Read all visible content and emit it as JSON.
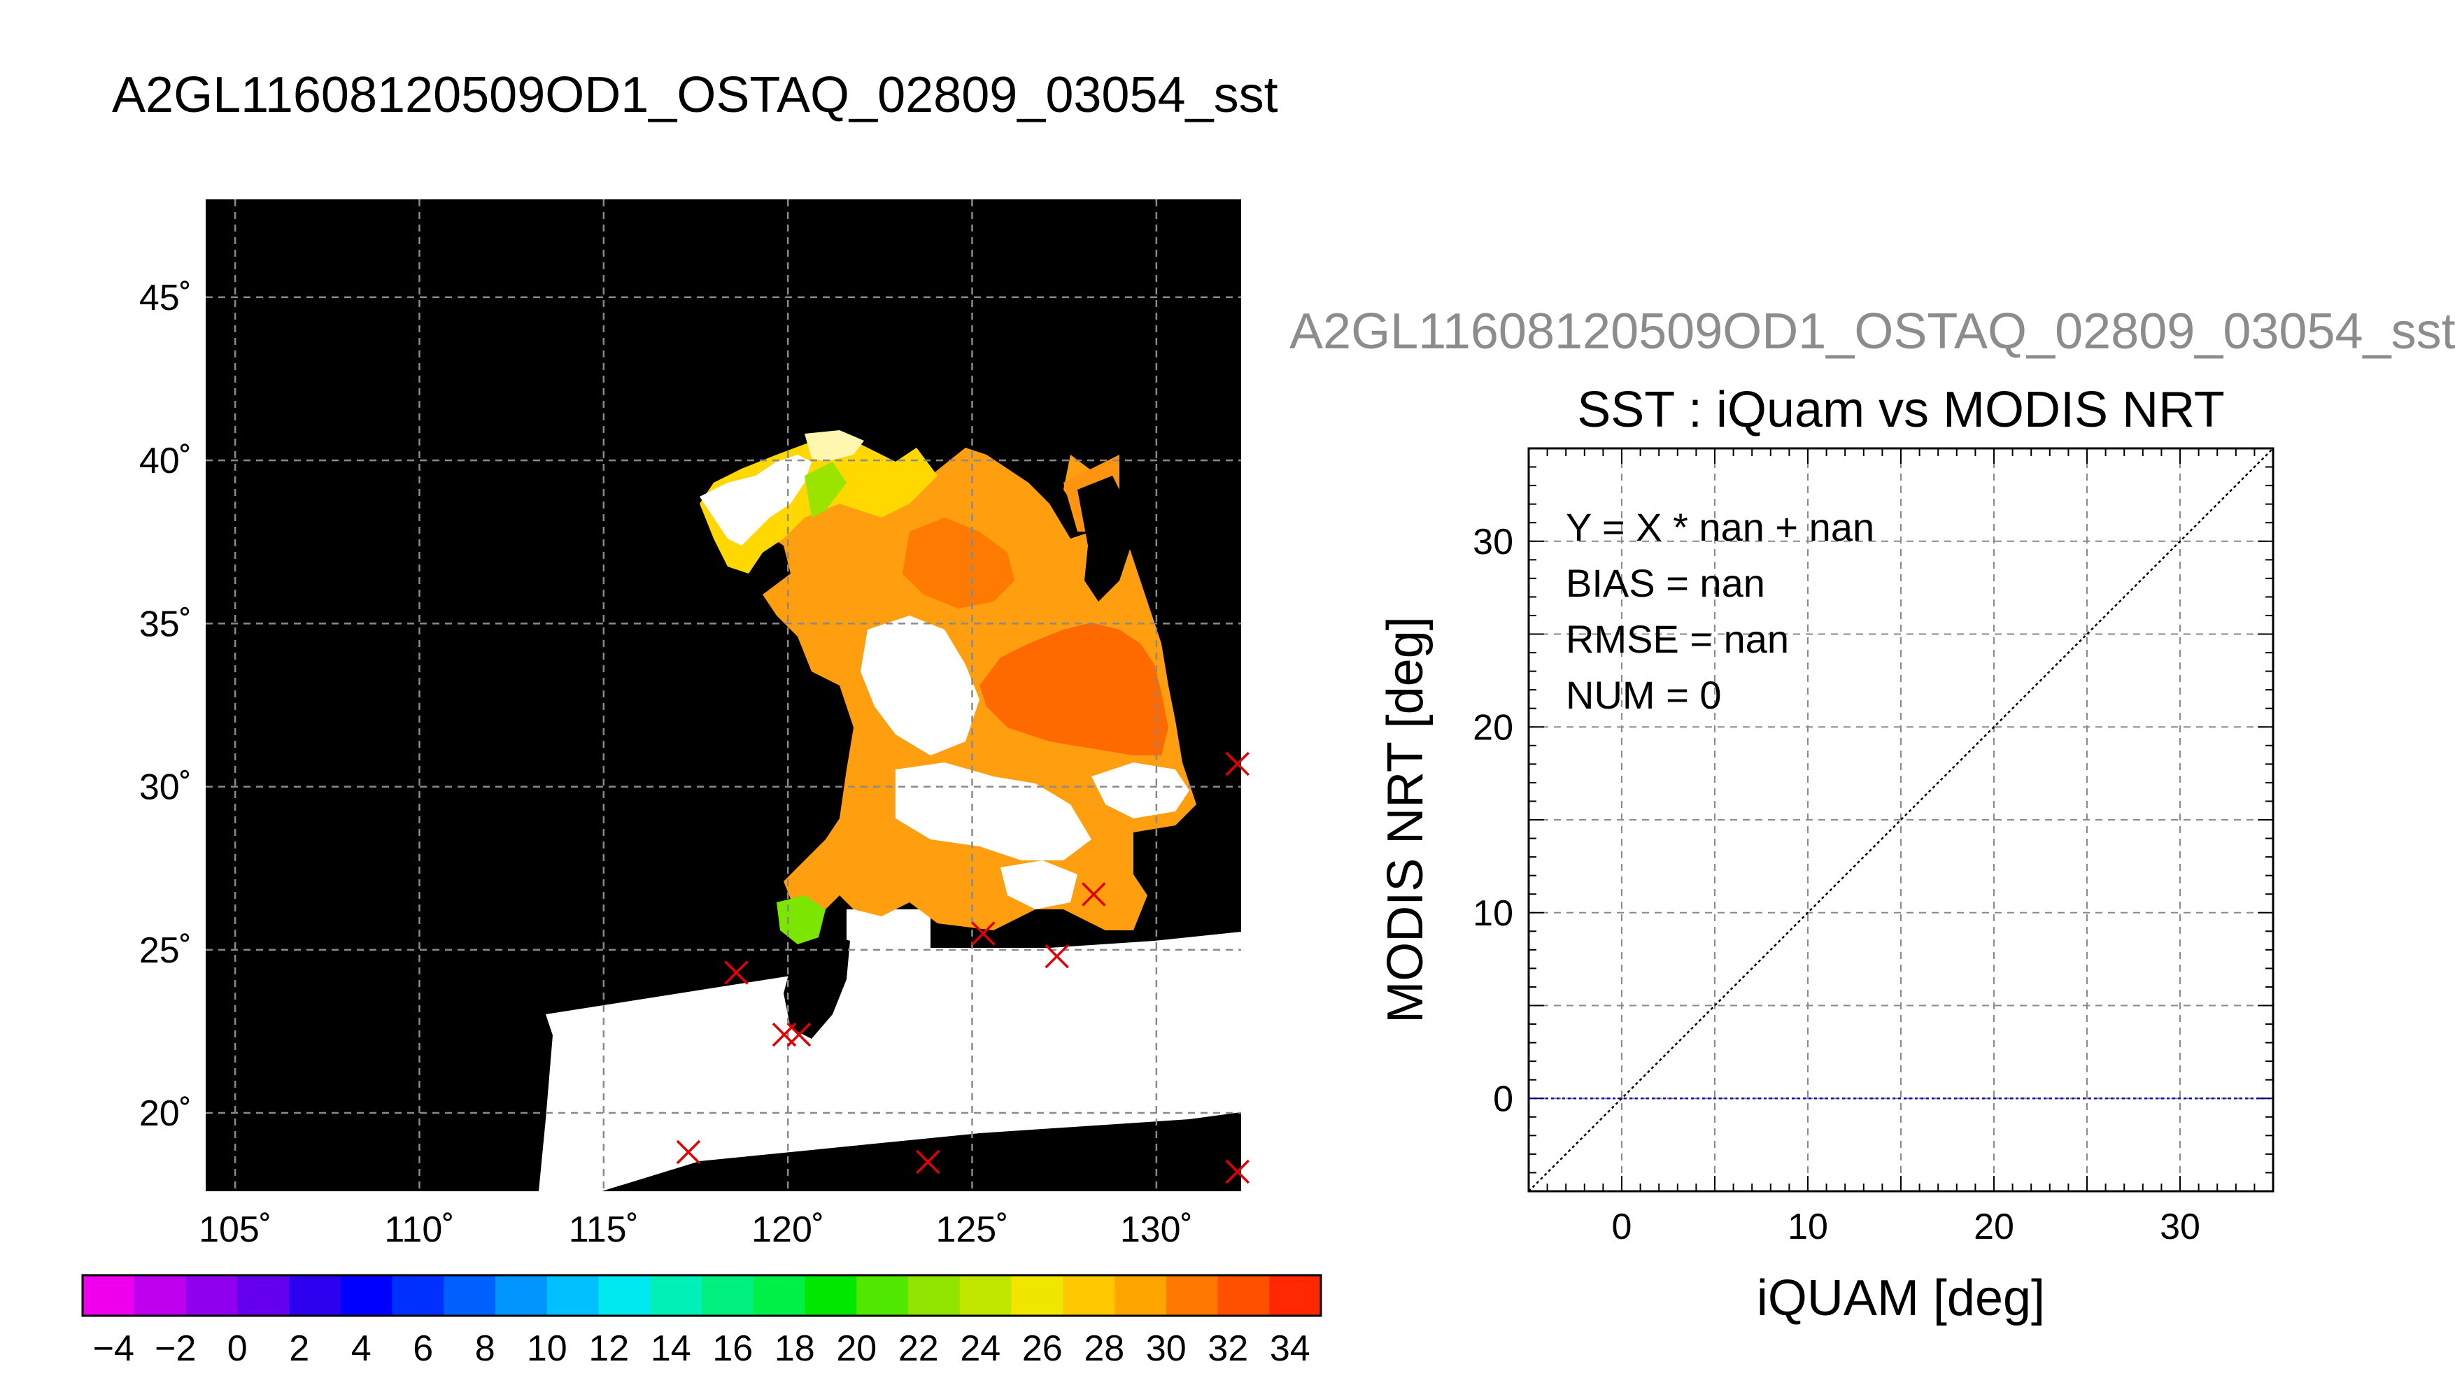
{
  "titles": {
    "main": "A2GL11608120509OD1_OSTAQ_02809_03054_sst",
    "right": "A2GL11608120509OD1_OSTAQ_02809_03054_sst"
  },
  "map": {
    "lon_ticks": [
      105,
      110,
      115,
      120,
      125,
      130
    ],
    "lat_ticks": [
      20,
      25,
      30,
      35,
      40,
      45
    ],
    "lon_range": [
      104.2,
      132.3
    ],
    "lat_range": [
      17.6,
      48.0
    ],
    "degree_symbol": "˚",
    "markers": [
      [
        118.6,
        24.3
      ],
      [
        119.9,
        22.4
      ],
      [
        120.3,
        22.4
      ],
      [
        117.3,
        18.8
      ],
      [
        123.8,
        18.5
      ],
      [
        125.3,
        25.5
      ],
      [
        127.3,
        24.8
      ],
      [
        128.3,
        26.7
      ],
      [
        132.2,
        30.7
      ],
      [
        132.2,
        18.2
      ]
    ]
  },
  "colorbar": {
    "tick_labels": [
      "−4",
      "−2",
      "0",
      "2",
      "4",
      "6",
      "8",
      "10",
      "12",
      "14",
      "16",
      "18",
      "20",
      "22",
      "24",
      "26",
      "28",
      "30",
      "32",
      "34"
    ],
    "colors": [
      "#ee00ee",
      "#bf00ee",
      "#9100ee",
      "#6400ee",
      "#2e00f0",
      "#0000ff",
      "#0030ff",
      "#0060ff",
      "#0095ff",
      "#00c0ff",
      "#00e8f0",
      "#00f0b8",
      "#00f080",
      "#00f048",
      "#00e800",
      "#50e800",
      "#90e400",
      "#c0e600",
      "#f0e600",
      "#ffc800",
      "#ffa500",
      "#ff7800",
      "#ff5000",
      "#ff2800"
    ],
    "range": [
      -5,
      35
    ]
  },
  "chart_data": {
    "type": "scatter",
    "title": "SST : iQuam vs MODIS NRT",
    "xlabel": "iQUAM [deg]",
    "ylabel": "MODIS NRT [deg]",
    "xlim": [
      -5,
      35
    ],
    "ylim": [
      -5,
      35
    ],
    "x_ticks": [
      0,
      10,
      20,
      30
    ],
    "y_ticks": [
      0,
      10,
      20,
      30
    ],
    "grid": true,
    "series": [],
    "reference_lines": [
      {
        "kind": "identity",
        "color": "#000000"
      },
      {
        "kind": "horizontal",
        "y": 0,
        "color": "#0000cc"
      }
    ],
    "annotations": [
      "Y = X * nan + nan",
      "BIAS = nan",
      "RMSE = nan",
      "NUM = 0"
    ]
  }
}
